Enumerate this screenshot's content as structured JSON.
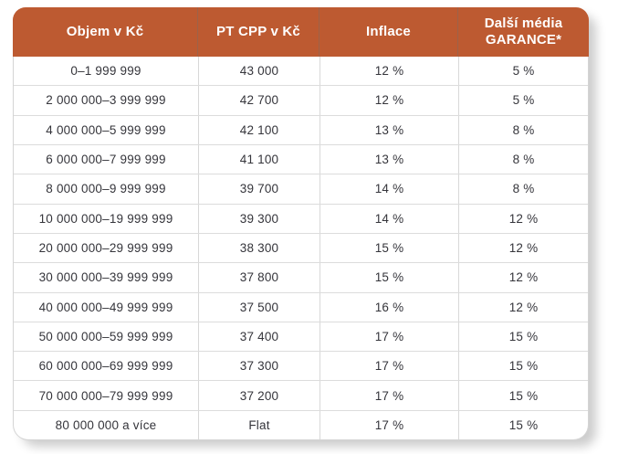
{
  "colors": {
    "header_background": "#bd5a31",
    "header_text": "#ffffff",
    "body_text": "#35353b",
    "row_border": "#dcdcdc",
    "column_border": "#d8d8d8",
    "card_border": "#d4d4d4",
    "page_background": "#ffffff"
  },
  "table": {
    "headers": [
      "Objem v Kč",
      "PT CPP v Kč",
      "Inflace",
      "Další média GARANCE*"
    ],
    "rows": [
      [
        "0–1 999 999",
        "43 000",
        "12 %",
        "5 %"
      ],
      [
        "2 000 000–3 999 999",
        "42 700",
        "12 %",
        "5 %"
      ],
      [
        "4 000 000–5 999 999",
        "42 100",
        "13 %",
        "8 %"
      ],
      [
        "6 000 000–7 999 999",
        "41 100",
        "13 %",
        "8 %"
      ],
      [
        "8 000 000–9 999 999",
        "39 700",
        "14 %",
        "8 %"
      ],
      [
        "10 000 000–19 999 999",
        "39 300",
        "14 %",
        "12 %"
      ],
      [
        "20 000 000–29 999 999",
        "38 300",
        "15 %",
        "12 %"
      ],
      [
        "30 000 000–39 999 999",
        "37 800",
        "15 %",
        "12 %"
      ],
      [
        "40 000 000–49 999 999",
        "37 500",
        "16 %",
        "12 %"
      ],
      [
        "50 000 000–59 999 999",
        "37 400",
        "17 %",
        "15 %"
      ],
      [
        "60 000 000–69 999 999",
        "37 300",
        "17 %",
        "15 %"
      ],
      [
        "70 000 000–79 999 999",
        "37 200",
        "17 %",
        "15 %"
      ],
      [
        "80 000 000 a více",
        "Flat",
        "17 %",
        "15 %"
      ]
    ]
  }
}
